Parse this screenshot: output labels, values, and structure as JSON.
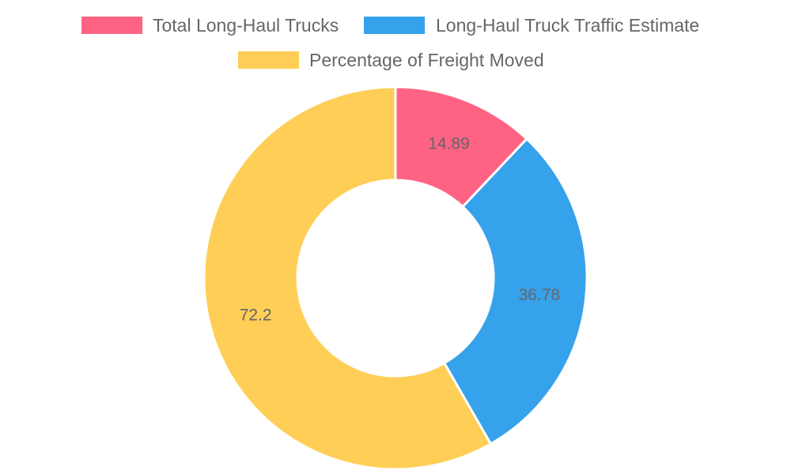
{
  "chart_data": {
    "type": "pie",
    "variant": "doughnut",
    "title": "",
    "legend": {
      "position": "top"
    },
    "series": [
      {
        "name": "Total Long-Haul Trucks",
        "value": 14.89,
        "label": "14.89",
        "color": "#ff6384"
      },
      {
        "name": "Long-Haul Truck Traffic Estimate",
        "value": 36.78,
        "label": "36.78",
        "color": "#36a2eb"
      },
      {
        "name": "Percentage of Freight Moved",
        "value": 72.2,
        "label": "72.2",
        "color": "#ffce56"
      }
    ]
  }
}
